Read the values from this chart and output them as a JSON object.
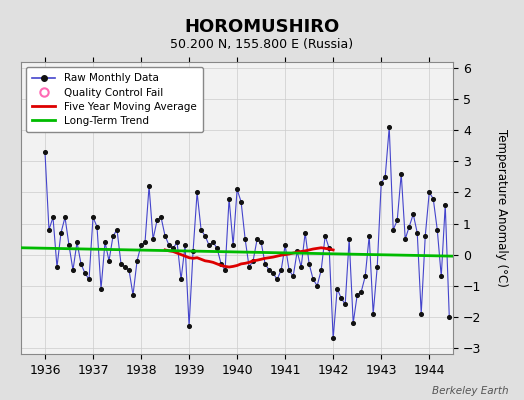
{
  "title": "HOROMUSHIRO",
  "subtitle": "50.200 N, 155.800 E (Russia)",
  "ylabel": "Temperature Anomaly (°C)",
  "watermark": "Berkeley Earth",
  "xlim": [
    1935.5,
    1944.5
  ],
  "ylim": [
    -3.2,
    6.2
  ],
  "yticks": [
    -3,
    -2,
    -1,
    0,
    1,
    2,
    3,
    4,
    5,
    6
  ],
  "xticks": [
    1936,
    1937,
    1938,
    1939,
    1940,
    1941,
    1942,
    1943,
    1944
  ],
  "bg_color": "#e0e0e0",
  "plot_bg_color": "#f2f2f2",
  "raw_color": "#4444cc",
  "dot_color": "#111111",
  "mavg_color": "#dd0000",
  "trend_color": "#00bb00",
  "qc_color": "#ff69b4",
  "raw_data": {
    "x": [
      1936.0,
      1936.083,
      1936.167,
      1936.25,
      1936.333,
      1936.417,
      1936.5,
      1936.583,
      1936.667,
      1936.75,
      1936.833,
      1936.917,
      1937.0,
      1937.083,
      1937.167,
      1937.25,
      1937.333,
      1937.417,
      1937.5,
      1937.583,
      1937.667,
      1937.75,
      1937.833,
      1937.917,
      1938.0,
      1938.083,
      1938.167,
      1938.25,
      1938.333,
      1938.417,
      1938.5,
      1938.583,
      1938.667,
      1938.75,
      1938.833,
      1938.917,
      1939.0,
      1939.083,
      1939.167,
      1939.25,
      1939.333,
      1939.417,
      1939.5,
      1939.583,
      1939.667,
      1939.75,
      1939.833,
      1939.917,
      1940.0,
      1940.083,
      1940.167,
      1940.25,
      1940.333,
      1940.417,
      1940.5,
      1940.583,
      1940.667,
      1940.75,
      1940.833,
      1940.917,
      1941.0,
      1941.083,
      1941.167,
      1941.25,
      1941.333,
      1941.417,
      1941.5,
      1941.583,
      1941.667,
      1941.75,
      1941.833,
      1941.917,
      1942.0,
      1942.083,
      1942.167,
      1942.25,
      1942.333,
      1942.417,
      1942.5,
      1942.583,
      1942.667,
      1942.75,
      1942.833,
      1942.917,
      1943.0,
      1943.083,
      1943.167,
      1943.25,
      1943.333,
      1943.417,
      1943.5,
      1943.583,
      1943.667,
      1943.75,
      1943.833,
      1943.917,
      1944.0,
      1944.083,
      1944.167,
      1944.25,
      1944.333,
      1944.417
    ],
    "y": [
      3.3,
      0.8,
      1.2,
      -0.4,
      0.7,
      1.2,
      0.3,
      -0.5,
      0.4,
      -0.3,
      -0.6,
      -0.8,
      1.2,
      0.9,
      -1.1,
      0.4,
      -0.2,
      0.6,
      0.8,
      -0.3,
      -0.4,
      -0.5,
      -1.3,
      -0.2,
      0.3,
      0.4,
      2.2,
      0.5,
      1.1,
      1.2,
      0.6,
      0.3,
      0.2,
      0.4,
      -0.8,
      0.3,
      -2.3,
      0.1,
      2.0,
      0.8,
      0.6,
      0.3,
      0.4,
      0.2,
      -0.3,
      -0.5,
      1.8,
      0.3,
      2.1,
      1.7,
      0.5,
      -0.4,
      -0.2,
      0.5,
      0.4,
      -0.3,
      -0.5,
      -0.6,
      -0.8,
      -0.5,
      0.3,
      -0.5,
      -0.7,
      0.1,
      -0.4,
      0.7,
      -0.3,
      -0.8,
      -1.0,
      -0.5,
      0.6,
      0.2,
      -2.7,
      -1.1,
      -1.4,
      -1.6,
      0.5,
      -2.2,
      -1.3,
      -1.2,
      -0.7,
      0.6,
      -1.9,
      -0.4,
      2.3,
      2.5,
      4.1,
      0.8,
      1.1,
      2.6,
      0.5,
      0.9,
      1.3,
      0.7,
      -1.9,
      0.6,
      2.0,
      1.8,
      0.8,
      -0.7,
      1.6,
      -2.0
    ]
  },
  "mavg_data": {
    "x": [
      1938.5,
      1938.583,
      1938.667,
      1938.75,
      1938.833,
      1938.917,
      1939.0,
      1939.083,
      1939.167,
      1939.25,
      1939.333,
      1939.417,
      1939.5,
      1939.583,
      1939.667,
      1939.75,
      1939.833,
      1939.917,
      1940.0,
      1940.083,
      1940.167,
      1940.25,
      1940.333,
      1940.417,
      1940.5,
      1940.583,
      1940.667,
      1940.75,
      1940.833,
      1940.917,
      1941.0,
      1941.083,
      1941.167,
      1941.25,
      1941.333,
      1941.417,
      1941.5,
      1941.583,
      1941.667,
      1941.75,
      1941.833,
      1941.917,
      1942.0
    ],
    "y": [
      0.15,
      0.12,
      0.1,
      0.05,
      0.0,
      -0.05,
      -0.1,
      -0.12,
      -0.1,
      -0.15,
      -0.2,
      -0.22,
      -0.25,
      -0.3,
      -0.35,
      -0.38,
      -0.4,
      -0.38,
      -0.35,
      -0.3,
      -0.28,
      -0.25,
      -0.2,
      -0.18,
      -0.15,
      -0.12,
      -0.1,
      -0.08,
      -0.05,
      -0.02,
      0.0,
      0.02,
      0.05,
      0.08,
      0.1,
      0.12,
      0.15,
      0.18,
      0.2,
      0.22,
      0.2,
      0.18,
      0.15
    ]
  },
  "trend_data": {
    "x": [
      1935.5,
      1944.5
    ],
    "y": [
      0.22,
      -0.05
    ]
  }
}
